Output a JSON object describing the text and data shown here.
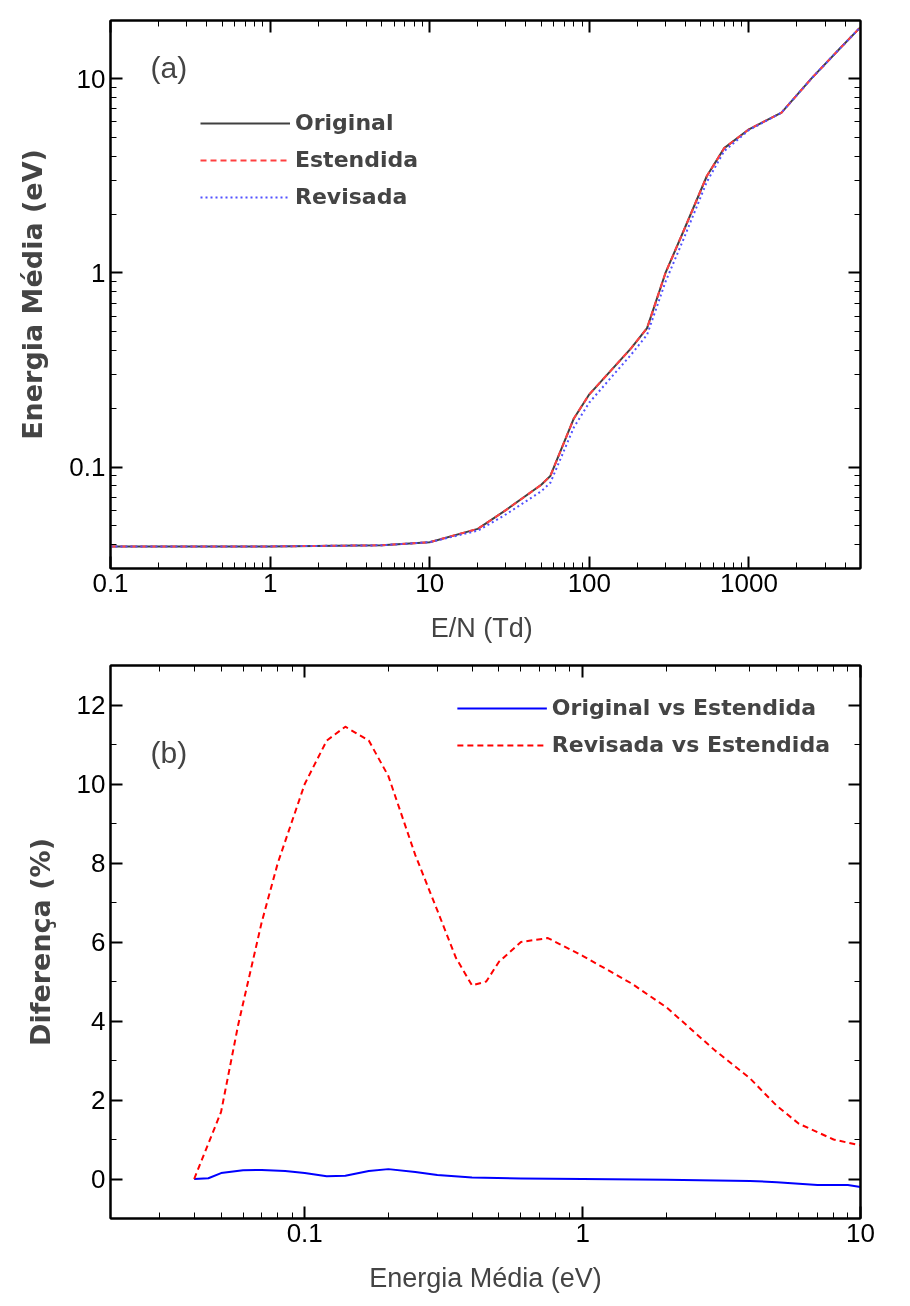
{
  "chart_data": [
    {
      "type": "line",
      "xlabel": "E/N  (Td)",
      "ylabel": "Energia Média (eV)",
      "log": "xy",
      "xlim": [
        0.1,
        5000
      ],
      "ylim": [
        0.03,
        20
      ],
      "xticks": [
        0.1,
        1,
        10,
        100,
        1000
      ],
      "yticks": [
        0.1,
        1,
        10
      ],
      "grid": false,
      "legend": "top left",
      "annotations": [
        "(a)"
      ],
      "series": [
        {
          "name": "Original",
          "color": "#404040",
          "line_style": "solid",
          "x": [
            0.1,
            1,
            5,
            10,
            20,
            30,
            50,
            57,
            80,
            100,
            183,
            230,
            300,
            390,
            545,
            700,
            1000,
            1600,
            2450,
            3700,
            5000
          ],
          "values": [
            0.039,
            0.039,
            0.0395,
            0.041,
            0.048,
            0.06,
            0.081,
            0.09,
            0.178,
            0.237,
            0.41,
            0.52,
            1.0,
            1.65,
            3.16,
            4.4,
            5.5,
            6.7,
            10,
            14.3,
            18.5
          ]
        },
        {
          "name": "Estendida",
          "color": "#ff4040",
          "line_style": "dashed",
          "x": [
            0.1,
            1,
            5,
            10,
            20,
            30,
            50,
            57,
            80,
            100,
            183,
            230,
            300,
            390,
            545,
            700,
            1000,
            1600,
            2450,
            3700,
            5000
          ],
          "values": [
            0.039,
            0.039,
            0.0395,
            0.041,
            0.048,
            0.06,
            0.081,
            0.09,
            0.178,
            0.237,
            0.41,
            0.52,
            1.0,
            1.65,
            3.16,
            4.4,
            5.5,
            6.7,
            10,
            14.3,
            18.5
          ]
        },
        {
          "name": "Revisada",
          "color": "#5050ff",
          "line_style": "dotted",
          "x": [
            0.1,
            1,
            5,
            10,
            20,
            30,
            50,
            57,
            80,
            100,
            183,
            230,
            300,
            390,
            545,
            700,
            1000,
            1600,
            2450,
            3700,
            5000
          ],
          "values": [
            0.039,
            0.039,
            0.0395,
            0.041,
            0.047,
            0.057,
            0.075,
            0.083,
            0.16,
            0.215,
            0.38,
            0.48,
            0.9,
            1.5,
            2.95,
            4.25,
            5.45,
            6.7,
            10,
            14.3,
            18.5
          ]
        }
      ]
    },
    {
      "type": "line",
      "xlabel": "Energia Média (eV)",
      "ylabel": "Diferença (%)",
      "log": "x",
      "xlim": [
        0.02,
        10
      ],
      "ylim": [
        -1,
        13
      ],
      "xticks": [
        0.1,
        1,
        10
      ],
      "yticks": [
        0,
        2,
        4,
        6,
        8,
        10,
        12
      ],
      "grid": false,
      "legend": "top right",
      "annotations": [
        "(b)"
      ],
      "series": [
        {
          "name": "Original vs Estendida",
          "color": "#0000ff",
          "line_style": "solid",
          "x": [
            0.04,
            0.045,
            0.05,
            0.06,
            0.07,
            0.085,
            0.1,
            0.12,
            0.14,
            0.17,
            0.2,
            0.25,
            0.3,
            0.4,
            0.6,
            1,
            2,
            4,
            5,
            7,
            8,
            9,
            10
          ],
          "values": [
            0,
            0.02,
            0.15,
            0.22,
            0.23,
            0.2,
            0.15,
            0.07,
            0.08,
            0.2,
            0.25,
            0.18,
            0.1,
            0.04,
            0.01,
            0,
            -0.02,
            -0.05,
            -0.08,
            -0.15,
            -0.15,
            -0.15,
            -0.2
          ]
        },
        {
          "name": "Revisada vs Estendida",
          "color": "#ff0000",
          "line_style": "dashed",
          "x": [
            0.04,
            0.05,
            0.0576,
            0.07,
            0.08,
            0.1,
            0.12,
            0.14,
            0.17,
            0.2,
            0.25,
            0.3,
            0.35,
            0.4,
            0.45,
            0.5,
            0.6,
            0.75,
            1.0,
            1.5,
            2,
            3,
            4,
            5,
            6,
            8,
            10
          ],
          "values": [
            0,
            1.7,
            3.9,
            6.5,
            8.0,
            10.0,
            11.1,
            11.45,
            11.1,
            10.2,
            8.2,
            6.8,
            5.6,
            4.9,
            5.0,
            5.5,
            6.0,
            6.1,
            5.65,
            4.95,
            4.35,
            3.25,
            2.55,
            1.85,
            1.4,
            1.0,
            0.85
          ]
        }
      ]
    }
  ]
}
